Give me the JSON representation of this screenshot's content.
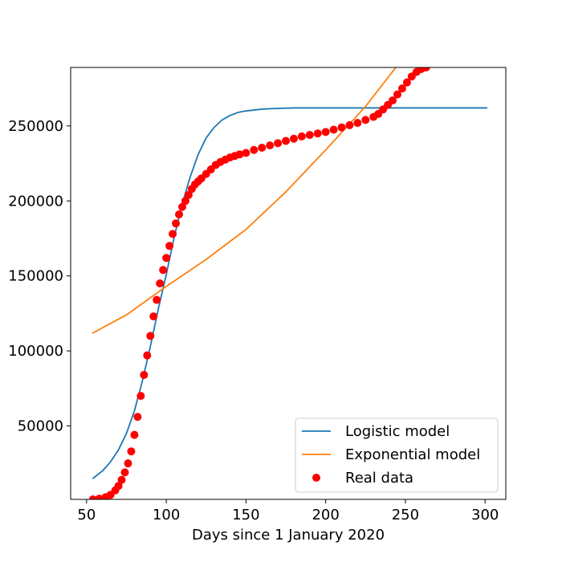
{
  "chart_data": {
    "type": "line",
    "title": "",
    "xlabel": "Days since 1 January 2020",
    "ylabel": "",
    "xlim": [
      40,
      313
    ],
    "ylim": [
      1000,
      289000
    ],
    "xticks": [
      50,
      100,
      150,
      200,
      250,
      300
    ],
    "yticks": [
      50000,
      100000,
      150000,
      200000,
      250000
    ],
    "grid": false,
    "legend": "lower-right",
    "series": [
      {
        "name": "Logistic model",
        "kind": "line",
        "color": "#1f77b4",
        "x": [
          54,
          60,
          65,
          70,
          75,
          80,
          85,
          90,
          95,
          100,
          105,
          110,
          115,
          120,
          125,
          130,
          135,
          140,
          145,
          150,
          160,
          170,
          180,
          200,
          230,
          260,
          301
        ],
        "y": [
          15000,
          20000,
          26000,
          34000,
          45000,
          60000,
          80000,
          103000,
          128000,
          151000,
          176000,
          198000,
          216000,
          231000,
          242000,
          249000,
          254000,
          257000,
          259000,
          260000,
          261200,
          261700,
          262000,
          262000,
          262000,
          262000,
          262000
        ]
      },
      {
        "name": "Exponential model",
        "kind": "line",
        "color": "#ff7f0e",
        "x": [
          54,
          75,
          100,
          125,
          150,
          175,
          200,
          225,
          244
        ],
        "y": [
          112000,
          124000,
          143000,
          161000,
          181000,
          206000,
          234000,
          263000,
          289000
        ]
      },
      {
        "name": "Real data",
        "kind": "scatter",
        "color": "#ff0000",
        "x": [
          54,
          58,
          62,
          65,
          68,
          70,
          72,
          74,
          76,
          78,
          80,
          82,
          84,
          86,
          88,
          90,
          92,
          94,
          96,
          98,
          100,
          102,
          104,
          106,
          108,
          110,
          112,
          114,
          116,
          118,
          120,
          122,
          125,
          128,
          131,
          134,
          137,
          140,
          143,
          146,
          150,
          155,
          160,
          165,
          170,
          175,
          180,
          185,
          190,
          195,
          200,
          205,
          210,
          215,
          220,
          225,
          230,
          233,
          236,
          239,
          242,
          245,
          248,
          251,
          254,
          257,
          260,
          263
        ],
        "y": [
          1000,
          1500,
          2500,
          4000,
          7000,
          10000,
          14000,
          19000,
          25000,
          33000,
          44000,
          56000,
          70000,
          84000,
          97000,
          110000,
          123000,
          134000,
          145000,
          154000,
          162000,
          170000,
          178000,
          185000,
          191000,
          196000,
          200000,
          204000,
          208000,
          211000,
          213000,
          215000,
          218000,
          221000,
          224000,
          226000,
          227500,
          229000,
          230000,
          231000,
          232000,
          234000,
          235500,
          237000,
          238500,
          240000,
          241500,
          243000,
          244000,
          245000,
          246000,
          247500,
          249000,
          250500,
          252000,
          254000,
          256000,
          258000,
          261000,
          264000,
          267000,
          271000,
          275000,
          279000,
          283000,
          286000,
          288000,
          289000
        ]
      }
    ]
  }
}
